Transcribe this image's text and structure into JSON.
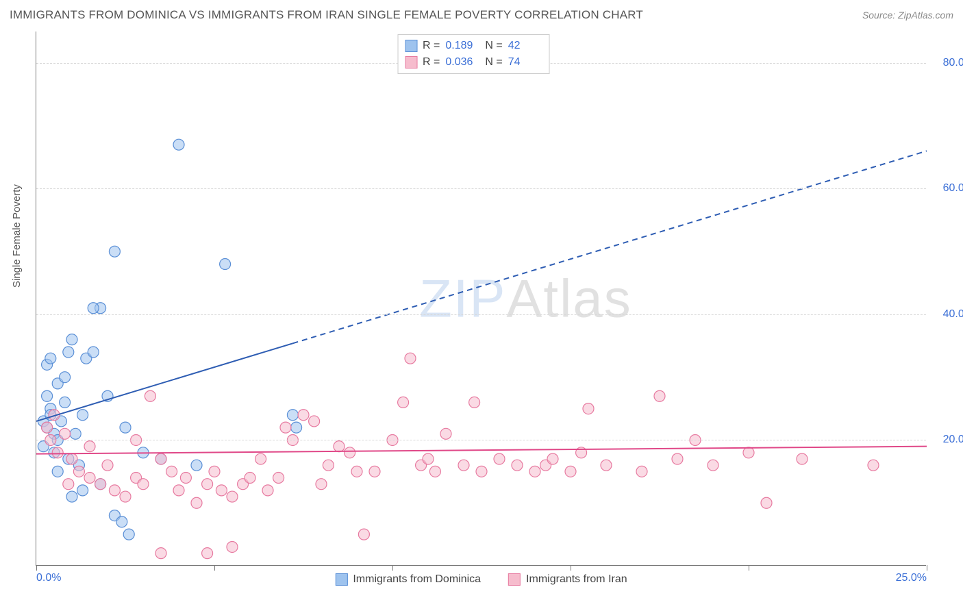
{
  "title": "IMMIGRANTS FROM DOMINICA VS IMMIGRANTS FROM IRAN SINGLE FEMALE POVERTY CORRELATION CHART",
  "source": "Source: ZipAtlas.com",
  "y_axis_label": "Single Female Poverty",
  "watermark_a": "ZIP",
  "watermark_b": "Atlas",
  "chart": {
    "type": "scatter",
    "xlim": [
      0,
      25
    ],
    "ylim": [
      0,
      85
    ],
    "x_ticks": [
      0,
      5,
      10,
      15,
      20,
      25
    ],
    "x_tick_labels": [
      "0.0%",
      "",
      "",
      "",
      "",
      "25.0%"
    ],
    "y_ticks": [
      20,
      40,
      60,
      80
    ],
    "y_tick_labels": [
      "20.0%",
      "40.0%",
      "60.0%",
      "80.0%"
    ],
    "grid_color": "#d8d8d8",
    "axis_color": "#777777",
    "background_color": "#ffffff",
    "tick_label_color": "#3b6fd6",
    "axis_label_color": "#555555",
    "marker_radius": 8,
    "marker_opacity": 0.55,
    "series": [
      {
        "name": "Immigrants from Dominica",
        "color_fill": "#9ec3ee",
        "color_stroke": "#5a8fd6",
        "R": "0.189",
        "N": "42",
        "trend": {
          "x1": 0,
          "y1": 23,
          "x2": 25,
          "y2": 66,
          "solid_until_x": 7.2,
          "color": "#2e5db3",
          "width": 2
        },
        "points": [
          [
            0.2,
            23
          ],
          [
            0.3,
            22
          ],
          [
            0.4,
            25
          ],
          [
            0.5,
            21
          ],
          [
            0.3,
            27
          ],
          [
            0.6,
            29
          ],
          [
            0.8,
            30
          ],
          [
            0.4,
            24
          ],
          [
            0.5,
            18
          ],
          [
            0.6,
            20
          ],
          [
            0.7,
            23
          ],
          [
            0.2,
            19
          ],
          [
            0.9,
            34
          ],
          [
            1.0,
            36
          ],
          [
            1.4,
            33
          ],
          [
            1.6,
            34
          ],
          [
            0.6,
            15
          ],
          [
            1.2,
            16
          ],
          [
            1.8,
            13
          ],
          [
            2.2,
            8
          ],
          [
            2.4,
            7
          ],
          [
            2.6,
            5
          ],
          [
            1.0,
            11
          ],
          [
            1.3,
            12
          ],
          [
            1.8,
            41
          ],
          [
            1.6,
            41
          ],
          [
            2.2,
            50
          ],
          [
            4.0,
            67
          ],
          [
            5.3,
            48
          ],
          [
            0.3,
            32
          ],
          [
            0.4,
            33
          ],
          [
            2.0,
            27
          ],
          [
            2.5,
            22
          ],
          [
            3.0,
            18
          ],
          [
            3.5,
            17
          ],
          [
            4.5,
            16
          ],
          [
            7.2,
            24
          ],
          [
            7.3,
            22
          ],
          [
            1.1,
            21
          ],
          [
            0.9,
            17
          ],
          [
            1.3,
            24
          ],
          [
            0.8,
            26
          ]
        ]
      },
      {
        "name": "Immigrants from Iran",
        "color_fill": "#f6bccd",
        "color_stroke": "#e77aa0",
        "R": "0.036",
        "N": "74",
        "trend": {
          "x1": 0,
          "y1": 17.8,
          "x2": 25,
          "y2": 19.0,
          "solid_until_x": 25,
          "color": "#e04888",
          "width": 2
        },
        "points": [
          [
            0.4,
            20
          ],
          [
            0.6,
            18
          ],
          [
            0.8,
            21
          ],
          [
            1.0,
            17
          ],
          [
            1.2,
            15
          ],
          [
            1.5,
            14
          ],
          [
            1.8,
            13
          ],
          [
            2.0,
            16
          ],
          [
            2.2,
            12
          ],
          [
            2.5,
            11
          ],
          [
            2.8,
            14
          ],
          [
            3.0,
            13
          ],
          [
            3.2,
            27
          ],
          [
            3.5,
            17
          ],
          [
            3.8,
            15
          ],
          [
            4.0,
            12
          ],
          [
            4.2,
            14
          ],
          [
            4.5,
            10
          ],
          [
            4.8,
            13
          ],
          [
            5.0,
            15
          ],
          [
            5.2,
            12
          ],
          [
            5.5,
            11
          ],
          [
            5.8,
            13
          ],
          [
            6.0,
            14
          ],
          [
            6.3,
            17
          ],
          [
            6.5,
            12
          ],
          [
            6.8,
            14
          ],
          [
            7.0,
            22
          ],
          [
            7.2,
            20
          ],
          [
            7.5,
            24
          ],
          [
            7.8,
            23
          ],
          [
            8.0,
            13
          ],
          [
            8.2,
            16
          ],
          [
            8.5,
            19
          ],
          [
            8.8,
            18
          ],
          [
            9.0,
            15
          ],
          [
            9.2,
            5
          ],
          [
            9.5,
            15
          ],
          [
            10.0,
            20
          ],
          [
            10.3,
            26
          ],
          [
            10.5,
            33
          ],
          [
            10.8,
            16
          ],
          [
            11.0,
            17
          ],
          [
            11.2,
            15
          ],
          [
            11.5,
            21
          ],
          [
            12.0,
            16
          ],
          [
            12.3,
            26
          ],
          [
            12.5,
            15
          ],
          [
            13.0,
            17
          ],
          [
            13.5,
            16
          ],
          [
            14.0,
            15
          ],
          [
            14.3,
            16
          ],
          [
            14.5,
            17
          ],
          [
            15.0,
            15
          ],
          [
            15.3,
            18
          ],
          [
            15.5,
            25
          ],
          [
            16.0,
            16
          ],
          [
            17.0,
            15
          ],
          [
            17.5,
            27
          ],
          [
            18.0,
            17
          ],
          [
            18.5,
            20
          ],
          [
            19.0,
            16
          ],
          [
            20.0,
            18
          ],
          [
            20.5,
            10
          ],
          [
            21.5,
            17
          ],
          [
            23.5,
            16
          ],
          [
            1.5,
            19
          ],
          [
            2.8,
            20
          ],
          [
            3.5,
            2
          ],
          [
            4.8,
            2
          ],
          [
            5.5,
            3
          ],
          [
            0.3,
            22
          ],
          [
            0.5,
            24
          ],
          [
            0.9,
            13
          ]
        ]
      }
    ]
  },
  "stats_legend_labels": {
    "R": "R =",
    "N": "N ="
  },
  "bottom_legend": [
    {
      "swatch_fill": "#9ec3ee",
      "swatch_stroke": "#5a8fd6",
      "label": "Immigrants from Dominica"
    },
    {
      "swatch_fill": "#f6bccd",
      "swatch_stroke": "#e77aa0",
      "label": "Immigrants from Iran"
    }
  ]
}
